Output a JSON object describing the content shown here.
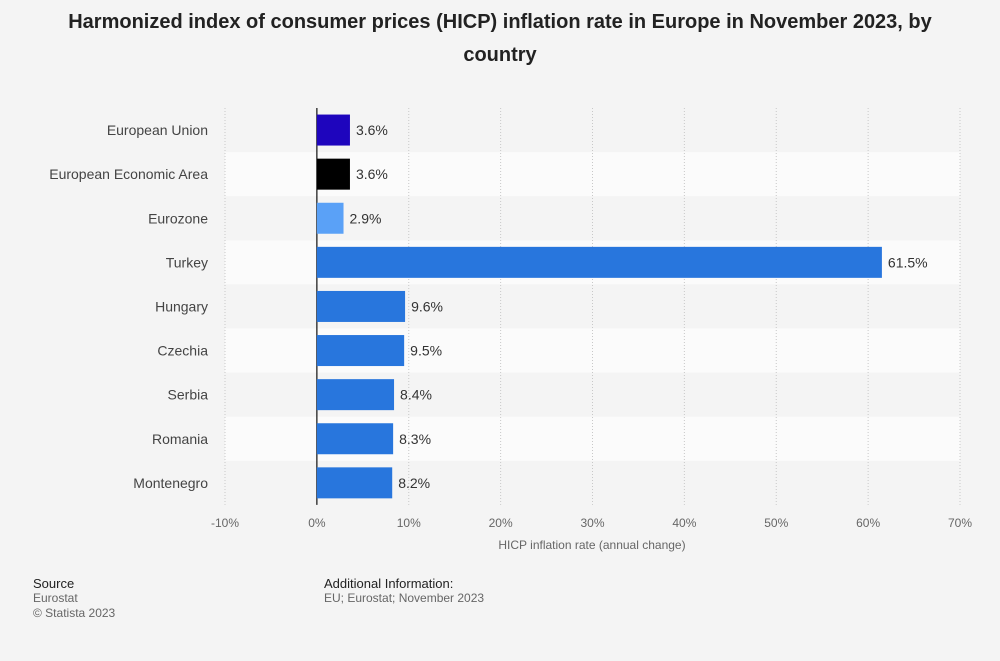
{
  "chart_data": {
    "type": "bar",
    "orientation": "horizontal",
    "title": "Harmonized index of consumer prices (HICP) inflation rate in Europe in November 2023, by country",
    "categories": [
      "European Union",
      "European Economic Area",
      "Eurozone",
      "Turkey",
      "Hungary",
      "Czechia",
      "Serbia",
      "Romania",
      "Montenegro"
    ],
    "values": [
      3.6,
      3.6,
      2.9,
      61.5,
      9.6,
      9.5,
      8.4,
      8.3,
      8.2
    ],
    "value_labels": [
      "3.6%",
      "3.6%",
      "2.9%",
      "61.5%",
      "9.6%",
      "9.5%",
      "8.4%",
      "8.3%",
      "8.2%"
    ],
    "colors": [
      "#1e05bd",
      "#000000",
      "#5aa1f7",
      "#2876dd",
      "#2876dd",
      "#2876dd",
      "#2876dd",
      "#2876dd",
      "#2876dd"
    ],
    "xlabel": "HICP inflation rate (annual change)",
    "xlim": [
      -10,
      70
    ],
    "xticks": [
      -10,
      0,
      10,
      20,
      30,
      40,
      50,
      60,
      70
    ],
    "xtick_labels": [
      "-10%",
      "0%",
      "10%",
      "20%",
      "30%",
      "40%",
      "50%",
      "60%",
      "70%"
    ],
    "grid": true
  },
  "footer": {
    "source_heading": "Source",
    "source_name": "Eurostat",
    "copyright": "© Statista 2023",
    "info_heading": "Additional Information:",
    "info_text": "EU; Eurostat; November 2023"
  }
}
